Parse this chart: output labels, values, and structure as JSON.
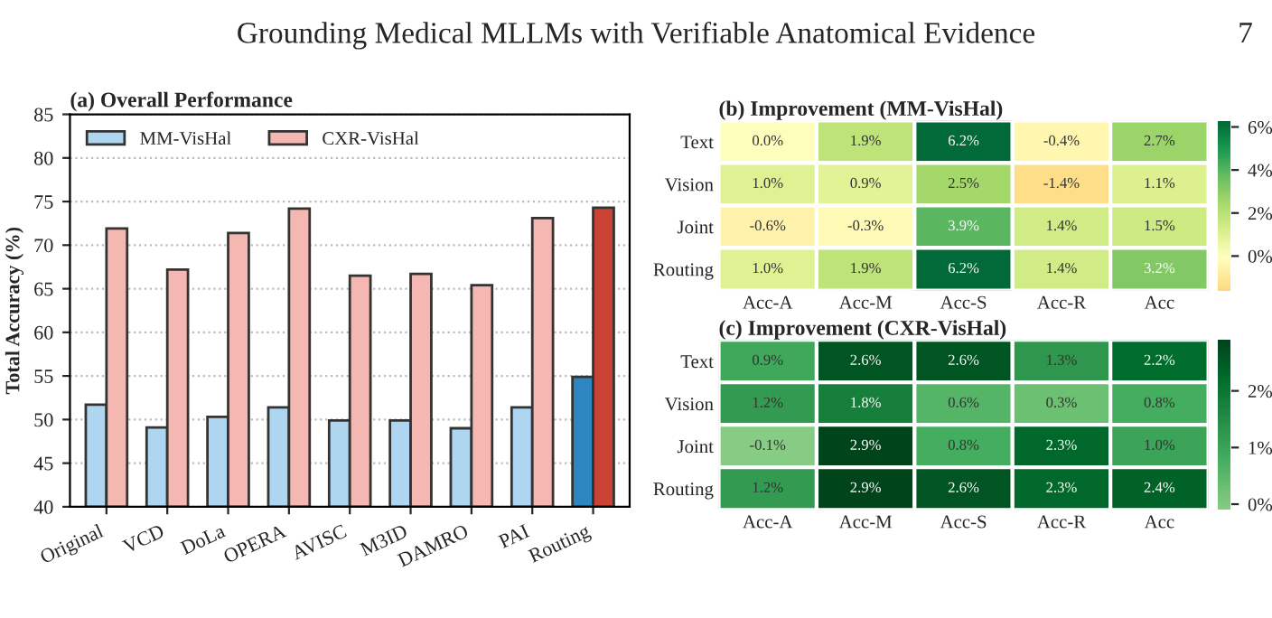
{
  "chart_data": [
    {
      "type": "bar",
      "title": "(a) Overall Performance",
      "ylabel": "Total Accuracy (%)",
      "annotations": [
        "Grounding Medical MLLMs with Verifiable Anatomical Evidence",
        "7"
      ],
      "categories": [
        "Original",
        "VCD",
        "DoLa",
        "OPERA",
        "AVISC",
        "M3ID",
        "DAMRO",
        "PAI",
        "Routing"
      ],
      "series": [
        {
          "name": "MM-VisHal",
          "color": "#aed6f1",
          "colors": [
            "#aed6f1",
            "#aed6f1",
            "#aed6f1",
            "#aed6f1",
            "#aed6f1",
            "#aed6f1",
            "#aed6f1",
            "#aed6f1",
            "#2e86c1"
          ],
          "values": [
            51.7,
            49.1,
            50.3,
            51.4,
            49.9,
            49.9,
            49.0,
            51.4,
            54.9
          ]
        },
        {
          "name": "CXR-VisHal",
          "color": "#f5b7b1",
          "colors": [
            "#f5b7b1",
            "#f5b7b1",
            "#f5b7b1",
            "#f5b7b1",
            "#f5b7b1",
            "#f5b7b1",
            "#f5b7b1",
            "#f5b7b1",
            "#cb4335"
          ],
          "values": [
            71.9,
            67.2,
            71.4,
            74.2,
            66.5,
            66.7,
            65.4,
            73.1,
            74.3
          ]
        }
      ],
      "ylim": [
        40,
        85
      ],
      "yticks": [
        40,
        45,
        50,
        55,
        60,
        65,
        70,
        75,
        80,
        85
      ],
      "grid": "y",
      "legend": "top left"
    },
    {
      "type": "heatmap",
      "title": "(b) Improvement (MM-VisHal)",
      "categories": [
        "Acc-A",
        "Acc-M",
        "Acc-S",
        "Acc-R",
        "Acc"
      ],
      "y_categories": [
        "Text",
        "Vision",
        "Joint",
        "Routing"
      ],
      "cells": [
        [
          0.0,
          1.9,
          6.2,
          -0.4,
          2.7
        ],
        [
          1.0,
          0.9,
          2.5,
          -1.4,
          1.1
        ],
        [
          -0.6,
          -0.3,
          3.9,
          1.4,
          1.5
        ],
        [
          1.0,
          1.9,
          6.2,
          1.4,
          3.2
        ]
      ],
      "cell_labels": [
        [
          "0.0%",
          "1.9%",
          "6.2%",
          "-0.4%",
          "2.7%"
        ],
        [
          "1.0%",
          "0.9%",
          "2.5%",
          "-1.4%",
          "1.1%"
        ],
        [
          "-0.6%",
          "-0.3%",
          "3.9%",
          "1.4%",
          "1.5%"
        ],
        [
          "1.0%",
          "1.9%",
          "6.2%",
          "1.4%",
          "3.2%"
        ]
      ],
      "clim": [
        -1.6,
        6.3
      ],
      "cticks": [
        {
          "value": 0,
          "label": "0%"
        },
        {
          "value": 2,
          "label": "2%"
        },
        {
          "value": 4,
          "label": "4%"
        },
        {
          "value": 6,
          "label": "6%"
        }
      ]
    },
    {
      "type": "heatmap",
      "title": "(c) Improvement (CXR-VisHal)",
      "categories": [
        "Acc-A",
        "Acc-M",
        "Acc-S",
        "Acc-R",
        "Acc"
      ],
      "y_categories": [
        "Text",
        "Vision",
        "Joint",
        "Routing"
      ],
      "cells": [
        [
          0.9,
          2.6,
          2.6,
          1.3,
          2.2
        ],
        [
          1.2,
          1.8,
          0.6,
          0.3,
          0.8
        ],
        [
          -0.1,
          2.9,
          0.8,
          2.3,
          1.0
        ],
        [
          1.2,
          2.9,
          2.6,
          2.3,
          2.4
        ]
      ],
      "cell_labels": [
        [
          "0.9%",
          "2.6%",
          "2.6%",
          "1.3%",
          "2.2%"
        ],
        [
          "1.2%",
          "1.8%",
          "0.6%",
          "0.3%",
          "0.8%"
        ],
        [
          "-0.1%",
          "2.9%",
          "0.8%",
          "2.3%",
          "1.0%"
        ],
        [
          "1.2%",
          "2.9%",
          "2.6%",
          "2.3%",
          "2.4%"
        ]
      ],
      "clim": [
        -0.1,
        2.9
      ],
      "cticks": [
        {
          "value": 0,
          "label": "0%"
        },
        {
          "value": 1,
          "label": "1%"
        },
        {
          "value": 2,
          "label": "2%"
        }
      ]
    }
  ]
}
